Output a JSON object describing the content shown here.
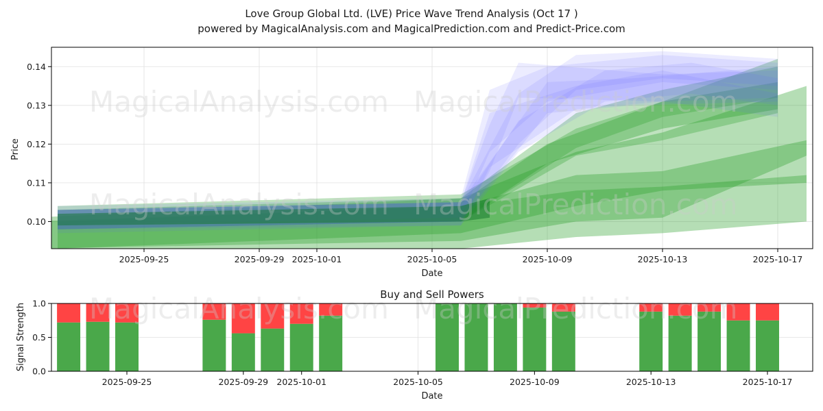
{
  "chart_data": [
    {
      "type": "area",
      "title": "Love Group Global Ltd. (LVE) Price Wave Trend Analysis (Oct 17 )",
      "subtitle": "powered by MagicalAnalysis.com and MagicalPrediction.com and Predict-Price.com",
      "xlabel": "Date",
      "ylabel": "Price",
      "x_range": [
        "2025-09-21",
        "2025-10-18"
      ],
      "ylim": [
        0.093,
        0.145
      ],
      "x_ticks": [
        "2025-09-25",
        "2025-09-29",
        "2025-10-01",
        "2025-10-05",
        "2025-10-09",
        "2025-10-13",
        "2025-10-17"
      ],
      "y_ticks": [
        0.1,
        0.11,
        0.12,
        0.13,
        0.14
      ],
      "y_tick_labels": [
        "0.10",
        "0.11",
        "0.12",
        "0.13",
        "0.14"
      ],
      "grid": true,
      "colors": {
        "green": "#2ca02c",
        "blue": "#6666ff",
        "dark_green": "#1a7a32"
      },
      "bands": [
        {
          "color": "green",
          "opacity": 0.35,
          "x": [
            "2025-09-21",
            "2025-10-06",
            "2025-10-10",
            "2025-10-13",
            "2025-10-18"
          ],
          "upper": [
            0.101,
            0.106,
            0.118,
            0.123,
            0.135
          ],
          "lower": [
            0.093,
            0.095,
            0.1,
            0.101,
            0.117
          ]
        },
        {
          "color": "green",
          "opacity": 0.35,
          "x": [
            "2025-09-22",
            "2025-10-06",
            "2025-10-10",
            "2025-10-13",
            "2025-10-18"
          ],
          "upper": [
            0.1,
            0.104,
            0.112,
            0.113,
            0.121
          ],
          "lower": [
            0.093,
            0.097,
            0.104,
            0.108,
            0.11
          ]
        },
        {
          "color": "green",
          "opacity": 0.35,
          "x": [
            "2025-09-21",
            "2025-10-06",
            "2025-10-10",
            "2025-10-13",
            "2025-10-18"
          ],
          "upper": [
            0.1,
            0.104,
            0.108,
            0.109,
            0.112
          ],
          "lower": [
            0.093,
            0.093,
            0.096,
            0.097,
            0.1
          ]
        },
        {
          "color": "green",
          "opacity": 0.3,
          "x": [
            "2025-09-22",
            "2025-10-06",
            "2025-10-10",
            "2025-10-13",
            "2025-10-17"
          ],
          "upper": [
            0.104,
            0.107,
            0.124,
            0.131,
            0.142
          ],
          "lower": [
            0.099,
            0.1,
            0.117,
            0.121,
            0.128
          ]
        },
        {
          "color": "green",
          "opacity": 0.3,
          "x": [
            "2025-09-22",
            "2025-10-06",
            "2025-10-10",
            "2025-10-13",
            "2025-10-17"
          ],
          "upper": [
            0.103,
            0.106,
            0.128,
            0.134,
            0.14
          ],
          "lower": [
            0.098,
            0.1,
            0.119,
            0.127,
            0.132
          ]
        },
        {
          "color": "green",
          "opacity": 0.35,
          "x": [
            "2025-09-22",
            "2025-10-06",
            "2025-10-09",
            "2025-10-13",
            "2025-10-17"
          ],
          "upper": [
            0.103,
            0.105,
            0.12,
            0.131,
            0.136
          ],
          "lower": [
            0.098,
            0.1,
            0.115,
            0.124,
            0.129
          ]
        },
        {
          "color": "blue",
          "opacity": 0.12,
          "x": [
            "2025-09-22",
            "2025-10-06",
            "2025-10-07",
            "2025-10-09",
            "2025-10-13",
            "2025-10-17"
          ],
          "upper": [
            0.104,
            0.106,
            0.134,
            0.14,
            0.143,
            0.141
          ],
          "lower": [
            0.099,
            0.101,
            0.118,
            0.131,
            0.136,
            0.134
          ]
        },
        {
          "color": "blue",
          "opacity": 0.12,
          "x": [
            "2025-09-22",
            "2025-10-06",
            "2025-10-07",
            "2025-10-08",
            "2025-10-13",
            "2025-10-17"
          ],
          "upper": [
            0.103,
            0.105,
            0.125,
            0.141,
            0.138,
            0.139
          ],
          "lower": [
            0.098,
            0.1,
            0.113,
            0.132,
            0.131,
            0.132
          ]
        },
        {
          "color": "blue",
          "opacity": 0.12,
          "x": [
            "2025-09-22",
            "2025-10-06",
            "2025-10-08",
            "2025-10-10",
            "2025-10-13",
            "2025-10-17"
          ],
          "upper": [
            0.103,
            0.105,
            0.133,
            0.143,
            0.144,
            0.142
          ],
          "lower": [
            0.098,
            0.1,
            0.12,
            0.134,
            0.137,
            0.135
          ]
        },
        {
          "color": "blue",
          "opacity": 0.12,
          "x": [
            "2025-09-22",
            "2025-10-06",
            "2025-10-07",
            "2025-10-10",
            "2025-10-13",
            "2025-10-17"
          ],
          "upper": [
            0.103,
            0.105,
            0.128,
            0.135,
            0.139,
            0.133
          ],
          "lower": [
            0.098,
            0.099,
            0.114,
            0.129,
            0.131,
            0.127
          ]
        },
        {
          "color": "blue",
          "opacity": 0.12,
          "x": [
            "2025-09-22",
            "2025-10-06",
            "2025-10-08",
            "2025-10-11",
            "2025-10-14",
            "2025-10-17"
          ],
          "upper": [
            0.102,
            0.104,
            0.126,
            0.139,
            0.141,
            0.137
          ],
          "lower": [
            0.097,
            0.099,
            0.118,
            0.131,
            0.133,
            0.13
          ]
        },
        {
          "color": "blue",
          "opacity": 0.12,
          "x": [
            "2025-09-22",
            "2025-10-06",
            "2025-10-09",
            "2025-10-12",
            "2025-10-17"
          ],
          "upper": [
            0.103,
            0.105,
            0.136,
            0.137,
            0.14
          ],
          "lower": [
            0.098,
            0.1,
            0.128,
            0.13,
            0.131
          ]
        },
        {
          "color": "dark_green",
          "opacity": 0.55,
          "x": [
            "2025-09-22",
            "2025-10-06",
            "2025-10-07"
          ],
          "upper": [
            0.102,
            0.104,
            0.106
          ],
          "lower": [
            0.099,
            0.1,
            0.101
          ]
        }
      ]
    },
    {
      "type": "bar",
      "title": "Buy and Sell Powers",
      "xlabel": "Date",
      "ylabel": "Signal Strength",
      "ylim": [
        0.0,
        1.0
      ],
      "y_ticks": [
        0.0,
        0.5,
        1.0
      ],
      "y_tick_labels": [
        "0.0",
        "0.5",
        "1.0"
      ],
      "x_range": [
        "2025-09-21",
        "2025-10-18"
      ],
      "x_ticks": [
        "2025-09-25",
        "2025-09-29",
        "2025-10-01",
        "2025-10-05",
        "2025-10-09",
        "2025-10-13",
        "2025-10-17"
      ],
      "grid": true,
      "colors": {
        "buy": "#4aa84a",
        "sell": "#ff4444"
      },
      "dates": [
        "2025-09-23",
        "2025-09-24",
        "2025-09-25",
        "2025-09-28",
        "2025-09-29",
        "2025-09-30",
        "2025-10-01",
        "2025-10-02",
        "2025-10-06",
        "2025-10-07",
        "2025-10-08",
        "2025-10-09",
        "2025-10-10",
        "2025-10-13",
        "2025-10-14",
        "2025-10-15",
        "2025-10-16",
        "2025-10-17"
      ],
      "series": [
        {
          "name": "Buy",
          "values": [
            0.72,
            0.73,
            0.72,
            0.76,
            0.56,
            0.63,
            0.7,
            0.82,
            1.0,
            1.0,
            1.0,
            0.94,
            0.88,
            0.88,
            0.82,
            0.88,
            0.75,
            0.75
          ]
        },
        {
          "name": "Sell",
          "values": [
            0.28,
            0.27,
            0.28,
            0.24,
            0.44,
            0.37,
            0.3,
            0.18,
            0.0,
            0.0,
            0.0,
            0.06,
            0.12,
            0.12,
            0.18,
            0.12,
            0.25,
            0.25
          ]
        }
      ]
    }
  ],
  "watermarks": [
    "MagicalAnalysis.com",
    "MagicalPrediction.com"
  ]
}
